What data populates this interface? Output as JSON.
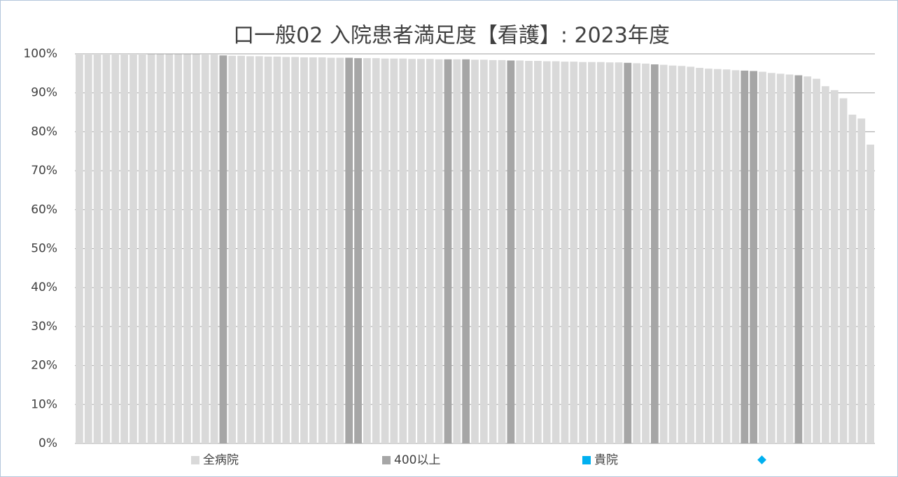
{
  "chart_data": {
    "type": "bar",
    "title": "口一般02 入院患者満足度【看護】: 2023年度",
    "categories": [
      null,
      null,
      null,
      null,
      null,
      null,
      null,
      null,
      null,
      null,
      null,
      null,
      null,
      null,
      null,
      null,
      null,
      null,
      null,
      null,
      null,
      null,
      null,
      null,
      null,
      null,
      null,
      null,
      null,
      null,
      null,
      null,
      null,
      null,
      null,
      null,
      null,
      null,
      null,
      null,
      null,
      null,
      null,
      null,
      null,
      null,
      null,
      null,
      null,
      null,
      null,
      null,
      null,
      null,
      null,
      null,
      null,
      null,
      null,
      null,
      null,
      null,
      null,
      null,
      null,
      null,
      null,
      null,
      null,
      null,
      null,
      null,
      null,
      null,
      null,
      null,
      null,
      null,
      null,
      null,
      null,
      null,
      null,
      null,
      null,
      null,
      null,
      null,
      null
    ],
    "series": [
      {
        "name": "全病院",
        "color": "#d9d9d9",
        "values": [
          100,
          100,
          100,
          100,
          100,
          100,
          100,
          100,
          99.9,
          99.9,
          99.9,
          99.9,
          99.9,
          99.9,
          99.8,
          99.8,
          null,
          99.5,
          99.5,
          99.4,
          99.4,
          99.3,
          99.3,
          99.2,
          99.2,
          99.1,
          99.1,
          99.1,
          99.0,
          99.0,
          null,
          null,
          98.9,
          98.9,
          98.8,
          98.8,
          98.8,
          98.7,
          98.7,
          98.7,
          98.6,
          null,
          98.6,
          null,
          98.5,
          98.5,
          98.4,
          98.4,
          null,
          98.3,
          98.2,
          98.2,
          98.1,
          98.1,
          98.0,
          98.0,
          97.9,
          97.9,
          97.9,
          97.8,
          97.8,
          null,
          97.6,
          97.5,
          null,
          97.2,
          97.0,
          96.9,
          96.7,
          96.4,
          96.2,
          96.1,
          96.0,
          95.8,
          null,
          null,
          95.4,
          95.1,
          94.9,
          94.7,
          null,
          94.2,
          93.6,
          91.7,
          90.7,
          88.6,
          84.4,
          83.4,
          76.7
        ]
      },
      {
        "name": "400以上",
        "color": "#a6a6a6",
        "values": [
          null,
          null,
          null,
          null,
          null,
          null,
          null,
          null,
          null,
          null,
          null,
          null,
          null,
          null,
          null,
          null,
          99.6,
          null,
          null,
          null,
          null,
          null,
          null,
          null,
          null,
          null,
          null,
          null,
          null,
          null,
          99.0,
          98.9,
          null,
          null,
          null,
          null,
          null,
          null,
          null,
          null,
          null,
          98.6,
          null,
          98.6,
          null,
          null,
          null,
          null,
          98.3,
          null,
          null,
          null,
          null,
          null,
          null,
          null,
          null,
          null,
          null,
          null,
          null,
          97.7,
          null,
          null,
          97.3,
          null,
          null,
          null,
          null,
          null,
          null,
          null,
          null,
          null,
          95.7,
          95.6,
          null,
          null,
          null,
          null,
          94.5,
          null,
          null,
          null,
          null,
          null,
          null,
          null,
          null
        ]
      },
      {
        "name": "貴院",
        "color": "#00b0f0"
      },
      {
        "color": "#00b0f0",
        "marker": "diamond"
      }
    ],
    "ylim": [
      0,
      100
    ],
    "yticks": [
      {
        "value": 0,
        "label": "0%"
      },
      {
        "value": 10,
        "label": "10%"
      },
      {
        "value": 20,
        "label": "20%"
      },
      {
        "value": 30,
        "label": "30%"
      },
      {
        "value": 40,
        "label": "40%"
      },
      {
        "value": 50,
        "label": "50%"
      },
      {
        "value": 60,
        "label": "60%"
      },
      {
        "value": 70,
        "label": "70%"
      },
      {
        "value": 80,
        "label": "80%"
      },
      {
        "value": 90,
        "label": "90%"
      },
      {
        "value": 100,
        "label": "100%"
      }
    ],
    "grid": true,
    "legend": "bottom"
  }
}
